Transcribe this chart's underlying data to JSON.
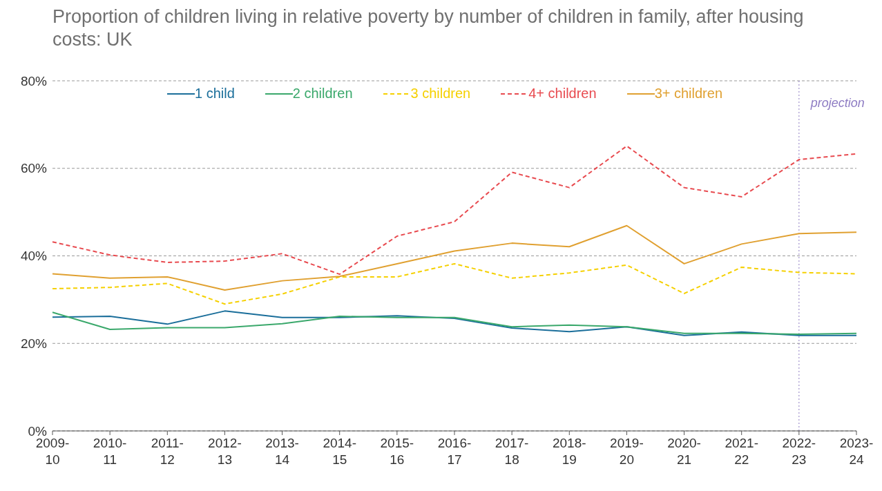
{
  "chart_data": {
    "type": "line",
    "title": "Proportion of children living in relative poverty by number of children in family, after housing costs: UK",
    "categories": [
      "2009-10",
      "2010-11",
      "2011-12",
      "2012-13",
      "2013-14",
      "2014-15",
      "2015-16",
      "2016-17",
      "2017-18",
      "2018-19",
      "2019-20",
      "2020-21",
      "2021-22",
      "2022-23",
      "2023-24"
    ],
    "series": [
      {
        "name": "1 child",
        "color": "#1a6e9a",
        "line_style": "solid",
        "values": [
          26.0,
          26.2,
          24.4,
          27.4,
          25.9,
          25.9,
          26.3,
          25.7,
          23.5,
          22.7,
          23.8,
          21.8,
          22.6,
          21.8,
          21.8
        ]
      },
      {
        "name": "2 children",
        "color": "#3aa86b",
        "line_style": "solid",
        "values": [
          27.1,
          23.2,
          23.6,
          23.6,
          24.5,
          26.2,
          25.9,
          25.9,
          23.8,
          24.2,
          23.8,
          22.3,
          22.3,
          22.1,
          22.3
        ]
      },
      {
        "name": "3 children",
        "color": "#f5d000",
        "line_style": "dashed",
        "values": [
          32.5,
          32.8,
          33.7,
          29.0,
          31.3,
          35.2,
          35.2,
          38.2,
          34.9,
          36.1,
          37.9,
          31.4,
          37.4,
          36.2,
          35.9
        ]
      },
      {
        "name": "4+ children",
        "color": "#e84a4f",
        "line_style": "dashed",
        "values": [
          43.2,
          40.2,
          38.5,
          38.8,
          40.5,
          35.8,
          44.5,
          47.8,
          59.1,
          55.6,
          65.1,
          55.6,
          53.5,
          62.0,
          63.3
        ]
      },
      {
        "name": "3+ children",
        "color": "#e0a030",
        "line_style": "solid",
        "values": [
          35.9,
          34.9,
          35.2,
          32.2,
          34.3,
          35.3,
          38.2,
          41.1,
          42.9,
          42.1,
          46.9,
          38.2,
          42.7,
          45.1,
          45.4
        ]
      }
    ],
    "ylim": [
      0,
      80
    ],
    "yticks": [
      {
        "value": 0,
        "label": "0%"
      },
      {
        "value": 20,
        "label": "20%"
      },
      {
        "value": 40,
        "label": "40%"
      },
      {
        "value": 60,
        "label": "60%"
      },
      {
        "value": 80,
        "label": "80%"
      }
    ],
    "grid": "y",
    "legend": "top",
    "marker": "none",
    "ref_lines": [
      {
        "axis": "x",
        "value": "2022-23",
        "label": "projection",
        "color": "#8e7cc3",
        "line_style": "dotted"
      }
    ]
  }
}
